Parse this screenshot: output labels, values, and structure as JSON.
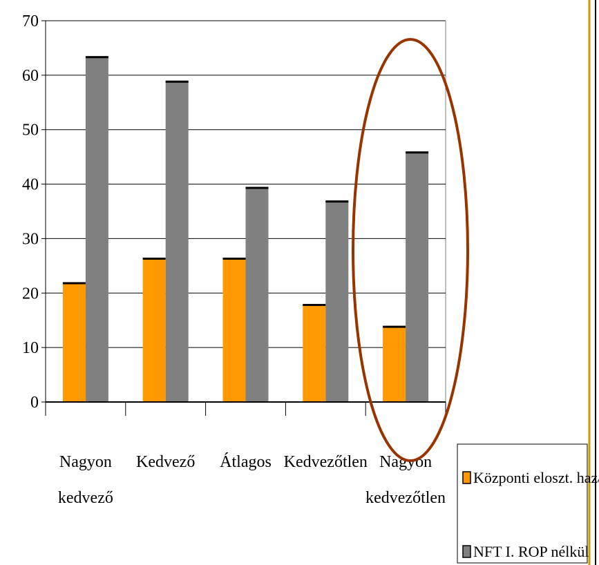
{
  "chart_data": {
    "type": "bar",
    "categories": [
      [
        "Nagyon",
        "kedvező"
      ],
      [
        "Kedvező"
      ],
      [
        "Átlagos"
      ],
      [
        "Kedvezőtlen"
      ],
      [
        "Nagyon",
        "kedvezőtlen"
      ]
    ],
    "series": [
      {
        "name": "Központi eloszt. hazai",
        "color": "#ff9900",
        "values": [
          22,
          26.5,
          26.5,
          18,
          14
        ]
      },
      {
        "name": "NFT I. ROP nélkül",
        "color": "#808080",
        "values": [
          63.5,
          59,
          39.5,
          37,
          46
        ]
      }
    ],
    "ylim": [
      0,
      70
    ],
    "yticks": [
      0,
      10,
      20,
      30,
      40,
      50,
      60,
      70
    ],
    "ylabel": "",
    "grid": true,
    "legend_position": "bottom-right",
    "annotation": {
      "shape": "ellipse",
      "color": "#993300",
      "highlights_category": 4
    },
    "colors": {
      "border_right": "#cc9900",
      "bar_cap": "#000000"
    }
  }
}
